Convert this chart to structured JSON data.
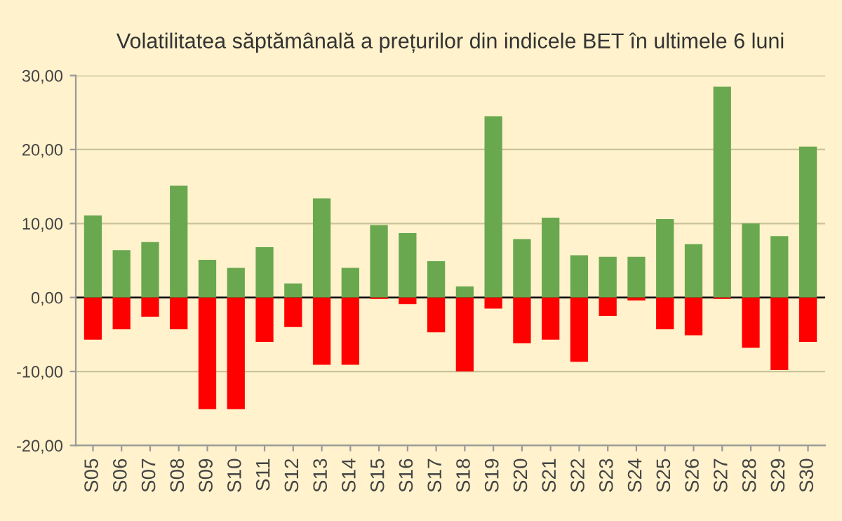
{
  "chart_data": {
    "type": "bar",
    "title": "Volatilitatea săptămânală a prețurilor din indicele BET în ultimele 6 luni",
    "categories": [
      "S05",
      "S06",
      "S07",
      "S08",
      "S09",
      "S10",
      "S11",
      "S12",
      "S13",
      "S14",
      "S15",
      "S16",
      "S17",
      "S18",
      "S19",
      "S20",
      "S21",
      "S22",
      "S23",
      "S24",
      "S25",
      "S26",
      "S27",
      "S28",
      "S29",
      "S30"
    ],
    "stacked": true,
    "series": [
      {
        "color": "#6aa84f",
        "values": [
          11.1,
          6.4,
          7.5,
          15.1,
          5.1,
          4.0,
          6.8,
          1.9,
          13.4,
          4.0,
          9.8,
          8.7,
          4.9,
          1.5,
          24.5,
          7.9,
          10.8,
          5.7,
          5.5,
          5.5,
          10.6,
          7.2,
          28.5,
          10.0,
          8.3,
          20.4
        ]
      },
      {
        "color": "#ff0000",
        "values": [
          -5.7,
          -4.3,
          -2.6,
          -4.3,
          -15.1,
          -15.1,
          -6.0,
          -4.0,
          -9.1,
          -9.1,
          -0.2,
          -0.9,
          -4.7,
          -10.0,
          -1.5,
          -6.2,
          -5.7,
          -8.7,
          -2.5,
          -0.4,
          -4.3,
          -5.1,
          -0.2,
          -6.8,
          -9.8,
          -6.0
        ]
      }
    ],
    "ylim": [
      -20,
      30
    ],
    "yticks": [
      {
        "value": -20,
        "label": "-20,00"
      },
      {
        "value": -10,
        "label": "-10,00"
      },
      {
        "value": 0,
        "label": "0,00"
      },
      {
        "value": 10,
        "label": "10,00"
      },
      {
        "value": 20,
        "label": "20,00"
      },
      {
        "value": 30,
        "label": "30,00"
      }
    ],
    "grid": "y",
    "legend": false
  }
}
